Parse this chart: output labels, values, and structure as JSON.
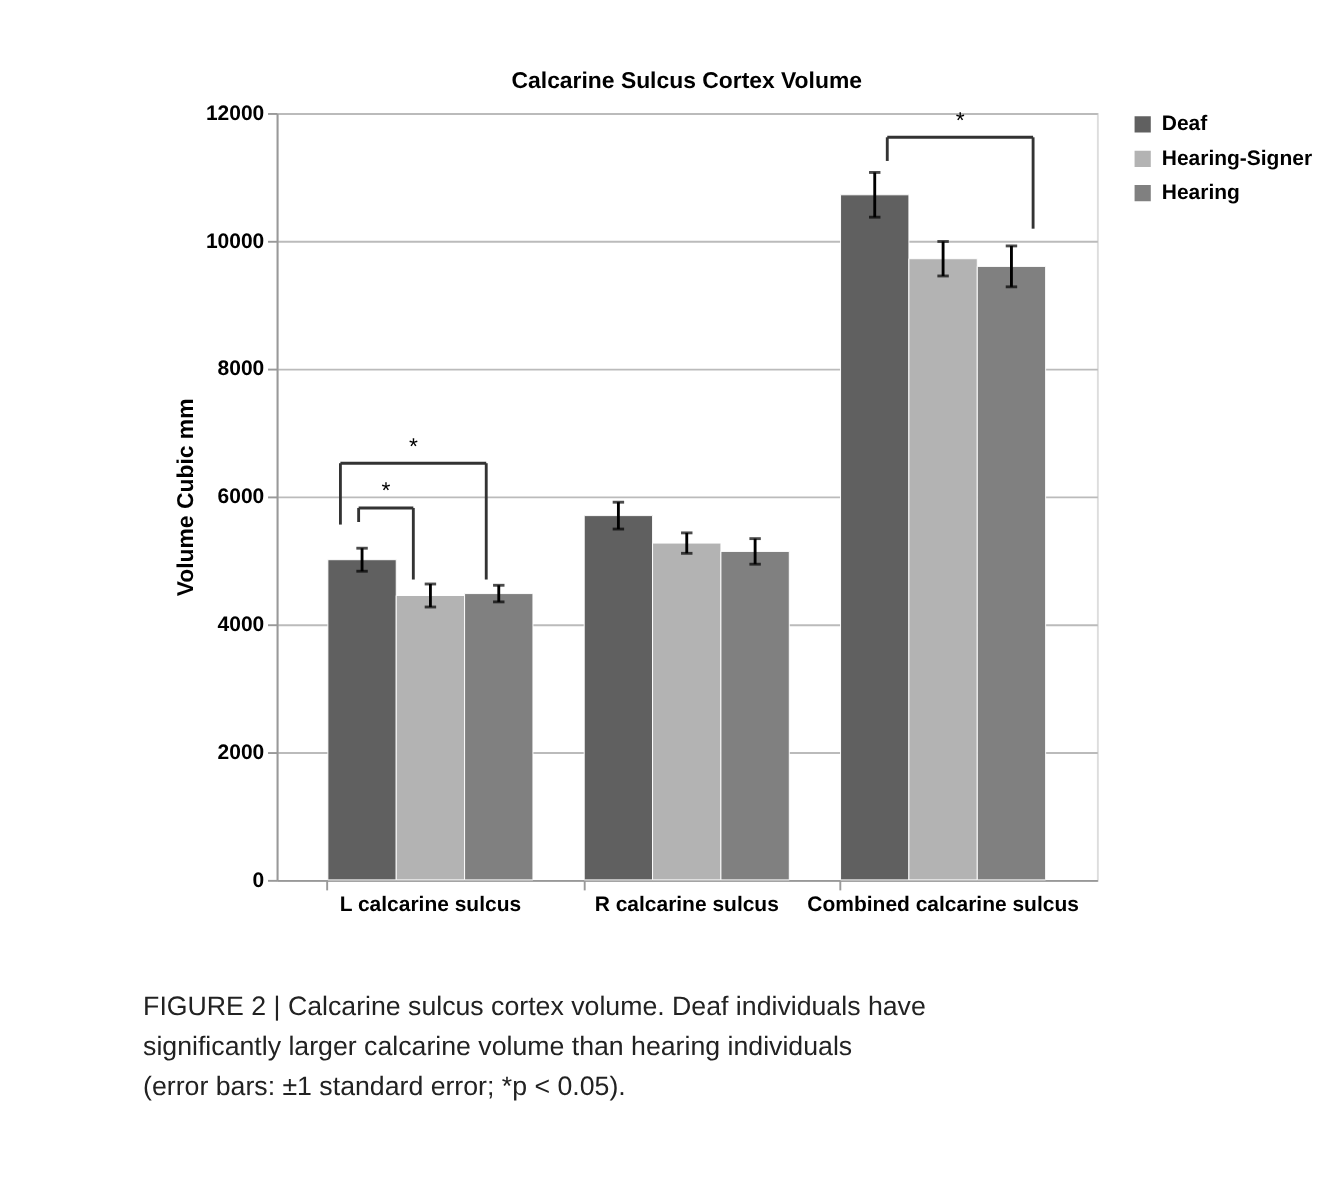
{
  "chart_data": {
    "type": "bar",
    "title": "Calcarine Sulcus Cortex Volume",
    "ylabel": "Volume Cubic mm",
    "categories": [
      "L calcarine sulcus",
      "R calcarine sulcus",
      "Combined calcarine sulcus"
    ],
    "series": [
      {
        "name": "Deaf",
        "color": "#606060",
        "values": [
          5010,
          5700,
          10720
        ],
        "errors": [
          180,
          210,
          350
        ]
      },
      {
        "name": "Hearing-Signer",
        "color": "#b3b3b3",
        "values": [
          4450,
          5270,
          9720
        ],
        "errors": [
          180,
          160,
          270
        ]
      },
      {
        "name": "Hearing",
        "color": "#808080",
        "values": [
          4480,
          5140,
          9600
        ],
        "errors": [
          130,
          200,
          320
        ]
      }
    ],
    "ylim": [
      0,
      12000
    ],
    "yticks": [
      0,
      2000,
      4000,
      6000,
      8000,
      10000,
      12000
    ],
    "grid": "y",
    "legend": "right",
    "annotations": [
      "*",
      "*",
      "*",
      "FIGURE 2 | Calcarine sulcus cortex volume. Deaf individuals have significantly larger calcarine volume than hearing individuals (error bars: ±1 standard error; *p < 0.05)."
    ]
  }
}
